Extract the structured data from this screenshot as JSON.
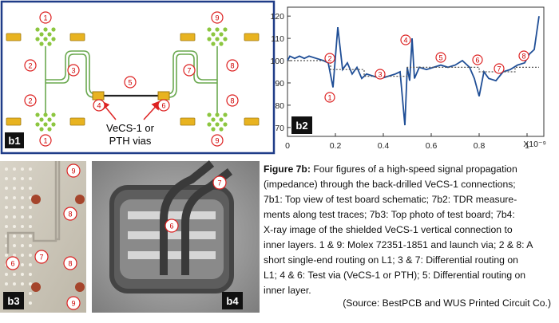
{
  "b1": {
    "label": "b1",
    "via_text": [
      "VeCS-1 or",
      "PTH vias"
    ],
    "markers": [
      "1",
      "2",
      "3",
      "2",
      "1",
      "4",
      "5",
      "6",
      "9",
      "8",
      "7",
      "8",
      "9"
    ]
  },
  "chart_data": {
    "type": "line",
    "panel_label": "b2",
    "x_exponent": "X10⁻⁹",
    "xlim": [
      0,
      1.07
    ],
    "ylim": [
      66,
      124
    ],
    "xticks": [
      0,
      0.2,
      0.4,
      0.6,
      0.8,
      1
    ],
    "yticks": [
      70,
      80,
      90,
      100,
      110,
      120
    ],
    "annotations": [
      "1",
      "2",
      "3",
      "4",
      "5",
      "6",
      "7",
      "8"
    ],
    "series": [
      {
        "color": "#1f4e96",
        "style": "solid",
        "x": [
          0,
          0.01,
          0.03,
          0.05,
          0.07,
          0.09,
          0.12,
          0.15,
          0.17,
          0.19,
          0.21,
          0.23,
          0.25,
          0.27,
          0.29,
          0.31,
          0.33,
          0.36,
          0.39,
          0.42,
          0.45,
          0.47,
          0.49,
          0.5,
          0.51,
          0.52,
          0.53,
          0.55,
          0.58,
          0.61,
          0.64,
          0.67,
          0.7,
          0.73,
          0.76,
          0.78,
          0.8,
          0.82,
          0.84,
          0.87,
          0.9,
          0.93,
          0.96,
          0.99,
          1.01,
          1.03,
          1.05
        ],
        "values": [
          100,
          102,
          101,
          102,
          101,
          102,
          101,
          100,
          99,
          88,
          115,
          96,
          99,
          94,
          97,
          92,
          94,
          93,
          92,
          93,
          94,
          95,
          71,
          97,
          91,
          110,
          92,
          97,
          96,
          97,
          98,
          97,
          98,
          100,
          97,
          92,
          84,
          95,
          92,
          91,
          95,
          96,
          98,
          99,
          103,
          105,
          120
        ]
      },
      {
        "color": "#555555",
        "style": "dotted",
        "x": [
          0,
          0.18,
          0.18,
          0.32,
          0.32,
          0.5,
          0.5,
          0.8,
          0.8,
          0.95,
          0.95,
          1.05
        ],
        "values": [
          100,
          100,
          96,
          96,
          93,
          93,
          97,
          97,
          95,
          95,
          97,
          97
        ]
      }
    ]
  },
  "b3": {
    "label": "b3",
    "markers": [
      "9",
      "8",
      "6",
      "7",
      "8",
      "9"
    ]
  },
  "b4": {
    "label": "b4",
    "markers": [
      "6",
      "7"
    ]
  },
  "caption": {
    "label": "Figure 7b:",
    "lines": [
      "Four figures of a high-speed signal propagation",
      "(impedance) through the back-drilled VeCS-1 connections;",
      "7b1: Top view of test board schematic; 7b2: TDR measure-",
      "ments along test traces; 7b3: Top photo of test board; 7b4:",
      "X-ray image of the shielded VeCS-1 vertical connection to",
      "inner layers. 1 & 9: Molex 72351-1851 and launch via; 2 & 8: A",
      "short single-end routing on L1; 3 & 7: Differential routing on",
      "L1; 4 & 6: Test via (VeCS-1 or PTH); 5: Differential routing on",
      "inner layer."
    ],
    "source": "(Source: BestPCB and WUS Printed Circuit Co.)"
  }
}
